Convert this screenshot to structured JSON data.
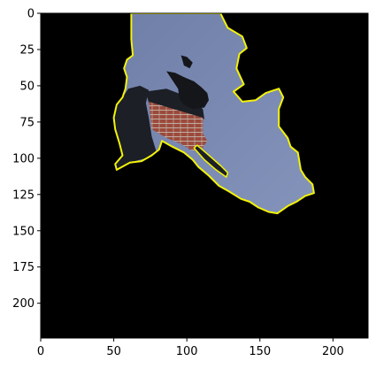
{
  "chart_data": {
    "type": "image",
    "title": "",
    "xlabel": "",
    "ylabel": "",
    "xlim": [
      0,
      224
    ],
    "ylim": [
      224,
      0
    ],
    "x_ticks": [
      0,
      50,
      100,
      150,
      200
    ],
    "y_ticks": [
      0,
      25,
      50,
      75,
      100,
      125,
      150,
      175,
      200
    ],
    "x_tick_labels": [
      "0",
      "50",
      "100",
      "150",
      "200"
    ],
    "y_tick_labels": [
      "0",
      "25",
      "50",
      "75",
      "100",
      "125",
      "150",
      "175",
      "200"
    ],
    "grid": false,
    "legend": "none",
    "colors": {
      "background": "#000000",
      "sky": "#6f7fa8",
      "sky_light": "#8393ba",
      "outline": "#f2f20a",
      "chimney_dark": "#1c1f26",
      "brick": "#9b4a3c",
      "mortar": "#c9c3b8",
      "bird": "#15161a"
    },
    "mask_outline": [
      [
        62,
        0
      ],
      [
        123,
        0
      ],
      [
        128,
        10
      ],
      [
        138,
        16
      ],
      [
        141,
        24
      ],
      [
        136,
        28
      ],
      [
        134,
        38
      ],
      [
        139,
        49
      ],
      [
        132,
        54
      ],
      [
        138,
        61
      ],
      [
        147,
        60
      ],
      [
        154,
        55
      ],
      [
        163,
        52
      ],
      [
        166,
        58
      ],
      [
        163,
        66
      ],
      [
        163,
        78
      ],
      [
        169,
        86
      ],
      [
        171,
        92
      ],
      [
        176,
        96
      ],
      [
        178,
        108
      ],
      [
        181,
        113
      ],
      [
        186,
        118
      ],
      [
        187,
        124
      ],
      [
        181,
        126
      ],
      [
        175,
        130
      ],
      [
        169,
        133
      ],
      [
        162,
        138
      ],
      [
        156,
        137
      ],
      [
        149,
        134
      ],
      [
        143,
        130
      ],
      [
        137,
        128
      ],
      [
        129,
        123
      ],
      [
        122,
        119
      ],
      [
        115,
        112
      ],
      [
        108,
        106
      ],
      [
        104,
        101
      ],
      [
        98,
        96
      ],
      [
        90,
        92
      ],
      [
        83,
        88
      ],
      [
        81,
        94
      ],
      [
        76,
        98
      ],
      [
        69,
        102
      ],
      [
        61,
        103
      ],
      [
        52,
        108
      ],
      [
        51,
        104
      ],
      [
        56,
        98
      ],
      [
        54,
        90
      ],
      [
        51,
        80
      ],
      [
        50,
        72
      ],
      [
        52,
        63
      ],
      [
        56,
        58
      ],
      [
        58,
        52
      ],
      [
        59,
        44
      ],
      [
        57,
        38
      ],
      [
        59,
        32
      ],
      [
        63,
        29
      ],
      [
        62,
        18
      ],
      [
        62,
        8
      ]
    ],
    "chimney_dark": [
      [
        52,
        63
      ],
      [
        56,
        58
      ],
      [
        60,
        52
      ],
      [
        68,
        50
      ],
      [
        74,
        53
      ],
      [
        72,
        62
      ],
      [
        74,
        72
      ],
      [
        76,
        85
      ],
      [
        79,
        95
      ],
      [
        72,
        100
      ],
      [
        61,
        103
      ],
      [
        52,
        108
      ],
      [
        51,
        104
      ],
      [
        56,
        98
      ],
      [
        54,
        90
      ],
      [
        51,
        80
      ],
      [
        50,
        72
      ]
    ],
    "brick_wall": [
      [
        74,
        61
      ],
      [
        111,
        72
      ],
      [
        111,
        83
      ],
      [
        114,
        88
      ],
      [
        112,
        91
      ],
      [
        109,
        96
      ],
      [
        102,
        94
      ],
      [
        96,
        90
      ],
      [
        86,
        86
      ],
      [
        76,
        80
      ]
    ],
    "chimney_cap": [
      [
        72,
        54
      ],
      [
        86,
        52
      ],
      [
        99,
        57
      ],
      [
        111,
        66
      ],
      [
        112,
        73
      ],
      [
        99,
        70
      ],
      [
        86,
        66
      ],
      [
        74,
        62
      ]
    ],
    "bird": [
      [
        86,
        40
      ],
      [
        92,
        41
      ],
      [
        98,
        44
      ],
      [
        105,
        47
      ],
      [
        110,
        51
      ],
      [
        114,
        55
      ],
      [
        115,
        60
      ],
      [
        112,
        65
      ],
      [
        104,
        66
      ],
      [
        98,
        63
      ],
      [
        95,
        59
      ],
      [
        94,
        52
      ],
      [
        90,
        46
      ]
    ],
    "bird_tail": [
      [
        96,
        29
      ],
      [
        100,
        30
      ],
      [
        104,
        34
      ],
      [
        102,
        38
      ],
      [
        98,
        36
      ]
    ],
    "gutter_edge": [
      [
        105,
        93
      ],
      [
        107,
        91
      ],
      [
        114,
        97
      ],
      [
        123,
        105
      ],
      [
        128,
        110
      ],
      [
        127,
        113
      ],
      [
        120,
        108
      ],
      [
        112,
        101
      ]
    ]
  }
}
